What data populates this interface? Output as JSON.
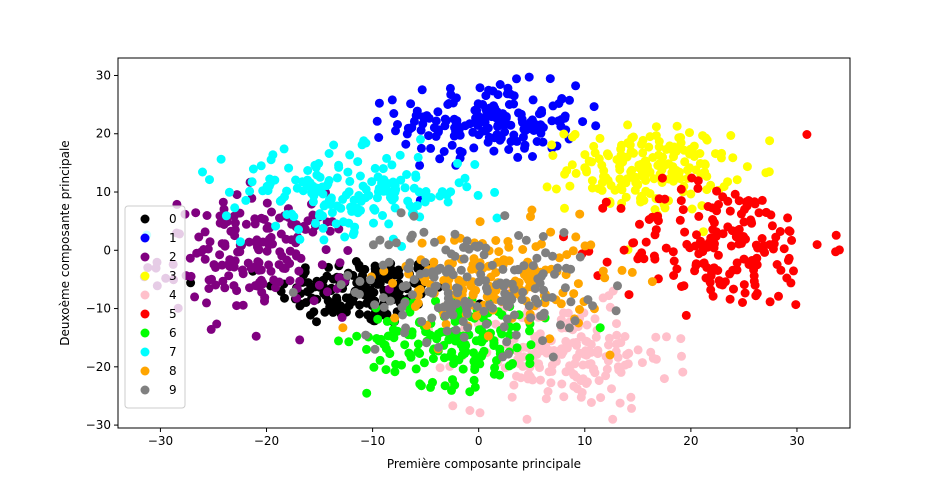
{
  "chart_data": {
    "type": "scatter",
    "title": "",
    "xlabel": "Première composante principale",
    "ylabel": "Deuxoème composante principale",
    "xlim": [
      -34,
      35
    ],
    "ylim": [
      -30.5,
      33
    ],
    "xticks": [
      -30,
      -20,
      -10,
      0,
      10,
      20,
      30
    ],
    "yticks": [
      -30,
      -20,
      -10,
      0,
      10,
      20,
      30
    ],
    "grid": false,
    "legend_position": "lower-left",
    "series": [
      {
        "name": "0",
        "color": "#000000",
        "center": [
          -11,
          -7
        ],
        "spread": [
          4.0,
          3.0
        ],
        "count": 170
      },
      {
        "name": "1",
        "color": "#0000ff",
        "center": [
          1,
          22
        ],
        "spread": [
          4.2,
          3.2
        ],
        "count": 180
      },
      {
        "name": "2",
        "color": "#800080",
        "center": [
          -21,
          -1
        ],
        "spread": [
          4.5,
          5.0
        ],
        "count": 180
      },
      {
        "name": "3",
        "color": "#ffff00",
        "center": [
          16,
          14
        ],
        "spread": [
          3.8,
          3.6
        ],
        "count": 180
      },
      {
        "name": "4",
        "color": "#ffc0cb",
        "center": [
          8,
          -18
        ],
        "spread": [
          5.0,
          4.5
        ],
        "count": 180
      },
      {
        "name": "5",
        "color": "#ff0000",
        "center": [
          23,
          1
        ],
        "spread": [
          4.8,
          5.5
        ],
        "count": 180
      },
      {
        "name": "6",
        "color": "#00ff00",
        "center": [
          -2,
          -15
        ],
        "spread": [
          4.2,
          4.0
        ],
        "count": 180
      },
      {
        "name": "7",
        "color": "#00ffff",
        "center": [
          -12,
          10
        ],
        "spread": [
          6.0,
          3.5
        ],
        "count": 180
      },
      {
        "name": "8",
        "color": "#ffa500",
        "center": [
          2,
          -5
        ],
        "spread": [
          5.0,
          4.5
        ],
        "count": 170
      },
      {
        "name": "9",
        "color": "#808080",
        "center": [
          -1,
          -6
        ],
        "spread": [
          5.5,
          5.0
        ],
        "count": 180
      }
    ]
  }
}
